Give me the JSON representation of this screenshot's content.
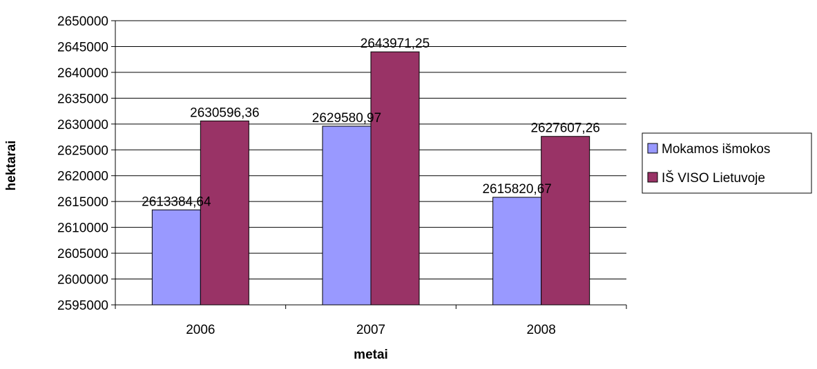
{
  "chart_data": {
    "type": "bar",
    "categories": [
      "2006",
      "2007",
      "2008"
    ],
    "series": [
      {
        "name": "Mokamos išmokos",
        "values": [
          2613384.64,
          2629580.97,
          2615820.67
        ],
        "labels": [
          "2613384,64",
          "2629580,97",
          "2615820,67"
        ],
        "color": "#9999ff"
      },
      {
        "name": "IŠ VISO Lietuvoje",
        "values": [
          2630596.36,
          2643971.25,
          2627607.26
        ],
        "labels": [
          "2630596,36",
          "2643971,25",
          "2627607,26"
        ],
        "color": "#993366"
      }
    ],
    "xlabel": "metai",
    "ylabel": "hektarai",
    "ylim": [
      2595000,
      2650000
    ],
    "ytick_step": 5000,
    "grid": true,
    "legend_position": "right"
  }
}
